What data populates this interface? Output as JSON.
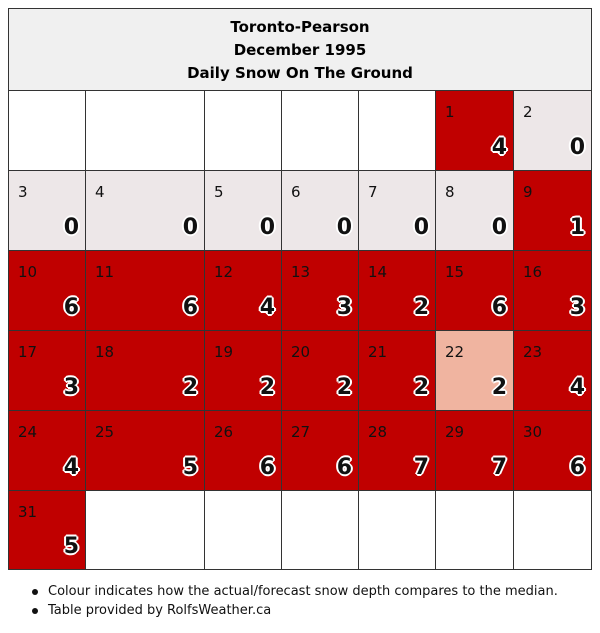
{
  "header": {
    "station": "Toronto-Pearson",
    "period": "December 1995",
    "subtitle": "Daily Snow On The Ground"
  },
  "colors": {
    "empty": "#ffffff",
    "below_median": "#ede7e8",
    "slightly_above": "#f0b4a0",
    "above_median": "#c00000"
  },
  "weeks": [
    [
      null,
      null,
      null,
      null,
      null,
      {
        "day": "1",
        "value": "4",
        "color": "above_median"
      },
      {
        "day": "2",
        "value": "0",
        "color": "below_median"
      }
    ],
    [
      {
        "day": "3",
        "value": "0",
        "color": "below_median"
      },
      {
        "day": "4",
        "value": "0",
        "color": "below_median"
      },
      {
        "day": "5",
        "value": "0",
        "color": "below_median"
      },
      {
        "day": "6",
        "value": "0",
        "color": "below_median"
      },
      {
        "day": "7",
        "value": "0",
        "color": "below_median"
      },
      {
        "day": "8",
        "value": "0",
        "color": "below_median"
      },
      {
        "day": "9",
        "value": "1",
        "color": "above_median"
      }
    ],
    [
      {
        "day": "10",
        "value": "6",
        "color": "above_median"
      },
      {
        "day": "11",
        "value": "6",
        "color": "above_median"
      },
      {
        "day": "12",
        "value": "4",
        "color": "above_median"
      },
      {
        "day": "13",
        "value": "3",
        "color": "above_median"
      },
      {
        "day": "14",
        "value": "2",
        "color": "above_median"
      },
      {
        "day": "15",
        "value": "6",
        "color": "above_median"
      },
      {
        "day": "16",
        "value": "3",
        "color": "above_median"
      }
    ],
    [
      {
        "day": "17",
        "value": "3",
        "color": "above_median"
      },
      {
        "day": "18",
        "value": "2",
        "color": "above_median"
      },
      {
        "day": "19",
        "value": "2",
        "color": "above_median"
      },
      {
        "day": "20",
        "value": "2",
        "color": "above_median"
      },
      {
        "day": "21",
        "value": "2",
        "color": "above_median"
      },
      {
        "day": "22",
        "value": "2",
        "color": "slightly_above"
      },
      {
        "day": "23",
        "value": "4",
        "color": "above_median"
      }
    ],
    [
      {
        "day": "24",
        "value": "4",
        "color": "above_median"
      },
      {
        "day": "25",
        "value": "5",
        "color": "above_median"
      },
      {
        "day": "26",
        "value": "6",
        "color": "above_median"
      },
      {
        "day": "27",
        "value": "6",
        "color": "above_median"
      },
      {
        "day": "28",
        "value": "7",
        "color": "above_median"
      },
      {
        "day": "29",
        "value": "7",
        "color": "above_median"
      },
      {
        "day": "30",
        "value": "6",
        "color": "above_median"
      }
    ],
    [
      {
        "day": "31",
        "value": "5",
        "color": "above_median"
      },
      null,
      null,
      null,
      null,
      null,
      null
    ]
  ],
  "notes": [
    "Colour indicates how the actual/forecast snow depth compares to the median.",
    "Table provided by RolfsWeather.ca"
  ]
}
